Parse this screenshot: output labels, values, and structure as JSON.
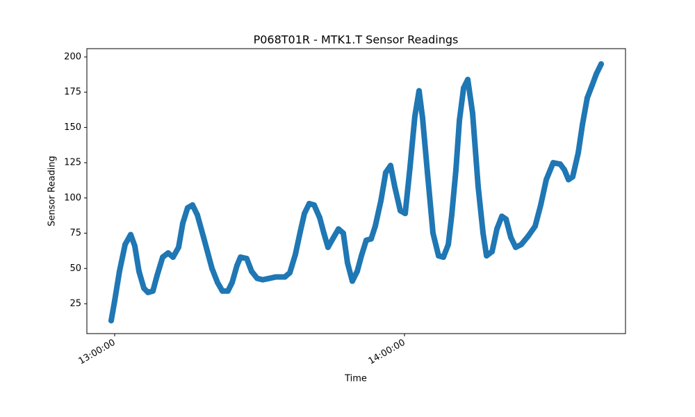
{
  "chart_data": {
    "type": "scatter",
    "title": "P068T01R - MTK1.T Sensor Readings",
    "x_label": "Time",
    "y_label": "Sensor Reading",
    "color": "#1f77b4",
    "x": [
      "12:59:17",
      "13:00:00",
      "13:01:00",
      "13:02:10",
      "13:03:19",
      "13:04:10",
      "13:05:02",
      "13:06:03",
      "13:06:54",
      "13:07:55",
      "13:08:47",
      "13:09:56",
      "13:11:05",
      "13:12:05",
      "13:13:14",
      "13:14:06",
      "13:15:06",
      "13:16:07",
      "13:17:07",
      "13:18:25",
      "13:20:09",
      "13:21:18",
      "13:22:18",
      "13:23:27",
      "13:24:19",
      "13:25:19",
      "13:26:03",
      "13:27:20",
      "13:28:21",
      "13:29:30",
      "13:30:39",
      "13:32:05",
      "13:33:23",
      "13:35:15",
      "13:36:16",
      "13:37:25",
      "13:38:25",
      "13:39:17",
      "13:40:17",
      "13:41:18",
      "13:42:27",
      "13:43:19",
      "13:44:10",
      "13:45:19",
      "13:46:20",
      "13:47:20",
      "13:48:12",
      "13:49:12",
      "13:50:13",
      "13:51:05",
      "13:52:05",
      "13:53:06",
      "13:53:57",
      "13:55:07",
      "13:56:07",
      "13:57:07",
      "13:57:59",
      "13:59:08",
      "14:00:09",
      "14:01:09",
      "14:02:09",
      "14:03:01",
      "14:03:44",
      "14:04:45",
      "14:05:54",
      "14:07:03",
      "14:08:03",
      "14:09:04",
      "14:09:47",
      "14:10:39",
      "14:11:22",
      "14:12:14",
      "14:13:06",
      "14:14:06",
      "14:15:15",
      "14:16:16",
      "14:16:59",
      "14:18:08",
      "14:19:08",
      "14:20:09",
      "14:21:01",
      "14:22:01",
      "14:23:01",
      "14:24:10",
      "14:25:37",
      "14:27:03",
      "14:28:12",
      "14:29:21",
      "14:30:47",
      "14:32:14",
      "14:33:06",
      "14:33:57",
      "14:34:49",
      "14:35:58",
      "14:36:50",
      "14:37:50",
      "14:38:51",
      "14:39:43",
      "14:40:43"
    ],
    "values": [
      13,
      27,
      48,
      67,
      74,
      66,
      48,
      36,
      33,
      34,
      45,
      58,
      61,
      58,
      65,
      82,
      93,
      95,
      88,
      72,
      50,
      40,
      34,
      34,
      40,
      52,
      58,
      57,
      48,
      43,
      42,
      43,
      44,
      44,
      47,
      60,
      76,
      89,
      96,
      95,
      86,
      75,
      65,
      72,
      78,
      75,
      54,
      41,
      48,
      59,
      70,
      71,
      80,
      98,
      118,
      123,
      108,
      91,
      89,
      122,
      158,
      176,
      157,
      118,
      75,
      59,
      58,
      67,
      88,
      120,
      155,
      178,
      184,
      160,
      108,
      75,
      59,
      62,
      78,
      87,
      85,
      72,
      65,
      67,
      73,
      80,
      95,
      113,
      125,
      124,
      120,
      113,
      115,
      132,
      152,
      171,
      180,
      188,
      195
    ],
    "xlim": [
      "12:54:15",
      "14:45:45"
    ],
    "xticks": [
      "13:00:00",
      "14:00:00"
    ],
    "ylim": [
      3.8,
      205.9
    ],
    "yticks": [
      25,
      50,
      75,
      100,
      125,
      150,
      175,
      200
    ]
  }
}
